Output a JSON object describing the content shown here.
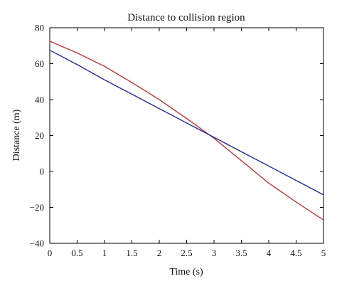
{
  "chart_data": {
    "type": "line",
    "title": "Distance to collision region",
    "xlabel": "Time (s)",
    "ylabel": "Distance (m)",
    "xlim": [
      0,
      5
    ],
    "ylim": [
      -40,
      80
    ],
    "xticks": [
      0,
      0.5,
      1,
      1.5,
      2,
      2.5,
      3,
      3.5,
      4,
      4.5,
      5
    ],
    "xtick_labels": [
      "0",
      "0.5",
      "1",
      "1.5",
      "2",
      "2.5",
      "3",
      "3.5",
      "4",
      "4.5",
      "5"
    ],
    "yticks": [
      -40,
      -20,
      0,
      20,
      40,
      60,
      80
    ],
    "ytick_labels": [
      "−40",
      "−20",
      "0",
      "20",
      "40",
      "60",
      "80"
    ],
    "grid": false,
    "legend": "none",
    "series": [
      {
        "color": "#c0393b",
        "x": [
          0,
          0.5,
          1,
          1.5,
          2,
          2.5,
          3,
          3.5,
          4,
          4.5,
          5
        ],
        "y": [
          72.5,
          66.0,
          58.5,
          49.5,
          40.0,
          29.5,
          18.5,
          6.0,
          -6.5,
          -17.0,
          -27.0
        ]
      },
      {
        "color": "#1f2a9c",
        "x": [
          0,
          0.5,
          1,
          1.5,
          2,
          2.5,
          3,
          3.5,
          4,
          4.5,
          5
        ],
        "y": [
          67.5,
          59.5,
          51.0,
          43.0,
          35.0,
          27.0,
          19.0,
          11.0,
          3.0,
          -5.0,
          -13.0
        ]
      }
    ]
  }
}
